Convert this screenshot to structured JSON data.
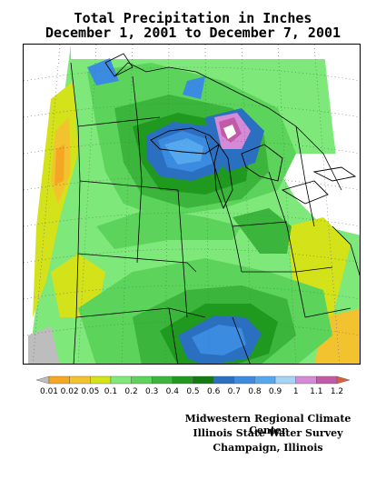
{
  "title": {
    "line1": "Total Precipitation in Inches",
    "line2": "December 1, 2001  to  December 7, 2001"
  },
  "legend": {
    "labels": [
      "0.01",
      "0.02",
      "0.05",
      "0.1",
      "0.2",
      "0.3",
      "0.4",
      "0.5",
      "0.6",
      "0.7",
      "0.8",
      "0.9",
      "1",
      "1.1",
      "1.2"
    ],
    "colors": [
      "#bdbdbd",
      "#f5a623",
      "#f2c22f",
      "#d4e21a",
      "#7ee87a",
      "#5cd45c",
      "#3cb53c",
      "#1f9a1f",
      "#147a14",
      "#2a6fc0",
      "#3b8be0",
      "#55a8ee",
      "#a6d4f5",
      "#d48ad6",
      "#c25aa8",
      "#d9603a"
    ]
  },
  "credits": {
    "line1": "Midwestern Regional Climate Center",
    "line2": "Illinois State Water Survey",
    "line3": "Champaign, Illinois"
  }
}
